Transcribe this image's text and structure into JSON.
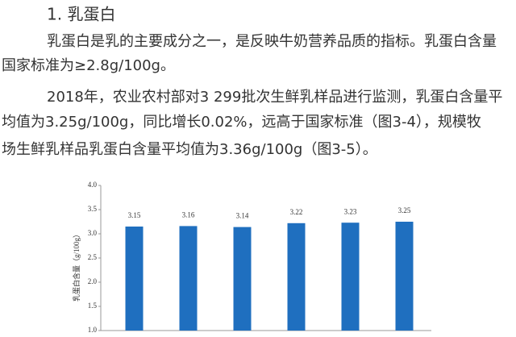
{
  "heading": "1. 乳蛋白",
  "paragraphs": [
    [
      "乳蛋白是乳的主要成分之一，是反映牛奶营养品质的指标。乳蛋白含量",
      "国家标准为≥2.8g/100g。"
    ],
    [
      "2018年，农业农村部对3 299批次生鲜乳样品进行监测，乳蛋白含量平",
      "均值为3.25g/100g，同比增长0.02%，远高于国家标准（图3-4），规模牧",
      "场生鲜乳样品乳蛋白含量平均值为3.36g/100g（图3-5）。"
    ]
  ],
  "chart_data": {
    "type": "bar",
    "y_label": "乳蛋白含量（g/100g）",
    "categories": [
      null,
      null,
      null,
      null,
      null,
      null
    ],
    "values": [
      3.15,
      3.16,
      3.14,
      3.22,
      3.23,
      3.25
    ],
    "color": "#1f6fbf",
    "ylim": [
      1,
      4
    ],
    "yticks": [
      {
        "value": 1,
        "label": "1.0"
      },
      {
        "value": 1.5,
        "label": "1.5"
      },
      {
        "value": 2,
        "label": "2.0"
      },
      {
        "value": 2.5,
        "label": "2.5"
      },
      {
        "value": 3,
        "label": "3.0"
      },
      {
        "value": 3.5,
        "label": "3.5"
      },
      {
        "value": 4,
        "label": "4.0"
      }
    ],
    "grid": false
  }
}
